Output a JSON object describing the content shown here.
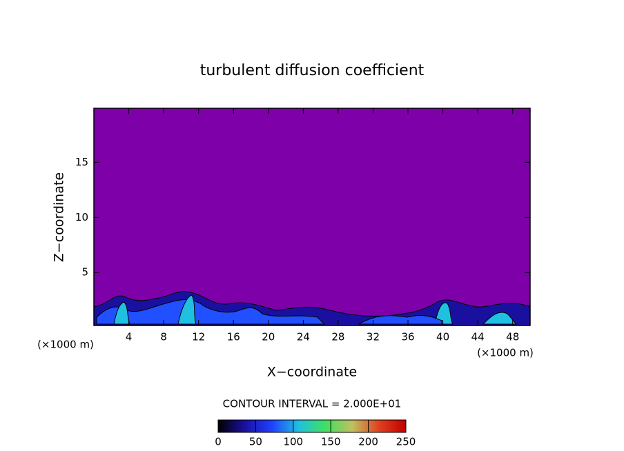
{
  "chart_data": {
    "type": "contour",
    "title": "turbulent diffusion coefficient",
    "x_label": "X−coordinate",
    "y_label": "Z−coordinate",
    "x_unit": "(×1000 m)",
    "y_unit": "(×1000 m)",
    "xlim": [
      0,
      50
    ],
    "xticks": [
      4,
      8,
      12,
      16,
      20,
      24,
      28,
      32,
      36,
      40,
      44,
      48
    ],
    "ylim": [
      0.2,
      19.9
    ],
    "yticks": [
      5,
      10,
      15
    ],
    "background_color": "#7e00a8",
    "contour_interval": "CONTOUR INTERVAL = 2.000E+01",
    "colorbar": {
      "lim": [
        0,
        250
      ],
      "ticks": [
        0,
        50,
        100,
        150,
        200,
        250
      ],
      "colors": [
        "#000000",
        "#1a10a0",
        "#2040ff",
        "#20c0e0",
        "#40e060",
        "#c0c060",
        "#e04020",
        "#c00000"
      ]
    }
  }
}
